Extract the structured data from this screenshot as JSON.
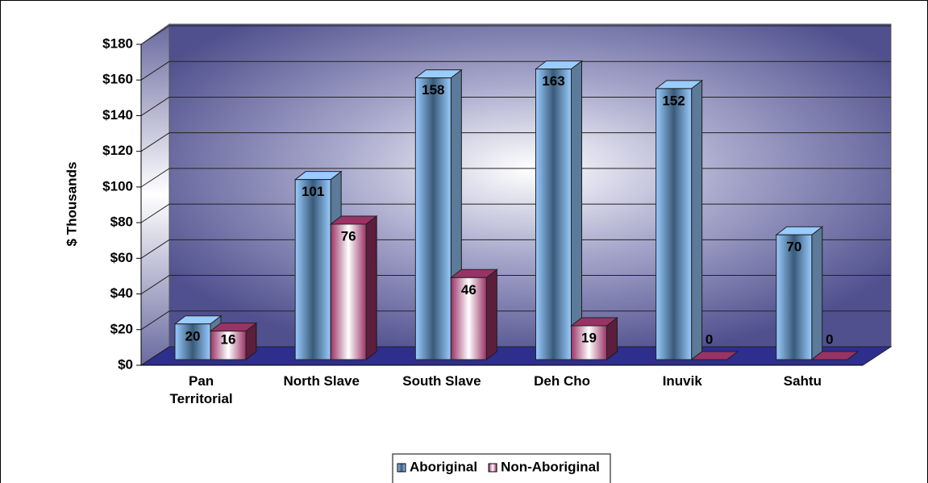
{
  "chart_data": {
    "type": "bar3d",
    "y_axis_label": "$ Thousands",
    "categories": [
      "Pan Territorial",
      "North Slave",
      "South Slave",
      "Deh Cho",
      "Inuvik",
      "Sahtu"
    ],
    "series": [
      {
        "name": "Aboriginal",
        "color": "#99ccff",
        "values": [
          20,
          101,
          158,
          163,
          152,
          70
        ]
      },
      {
        "name": "Non-Aboriginal",
        "color": "#993366",
        "values": [
          16,
          76,
          46,
          19,
          0,
          0
        ]
      }
    ],
    "ylim": [
      0,
      180
    ],
    "yticks": [
      {
        "value": 0,
        "label": "$0"
      },
      {
        "value": 20,
        "label": "$20"
      },
      {
        "value": 40,
        "label": "$40"
      },
      {
        "value": 60,
        "label": "$60"
      },
      {
        "value": 80,
        "label": "$80"
      },
      {
        "value": 100,
        "label": "$100"
      },
      {
        "value": 120,
        "label": "$120"
      },
      {
        "value": 140,
        "label": "$140"
      },
      {
        "value": 160,
        "label": "$160"
      },
      {
        "value": 180,
        "label": "$180"
      }
    ],
    "grid": true,
    "legend": "bottom"
  }
}
